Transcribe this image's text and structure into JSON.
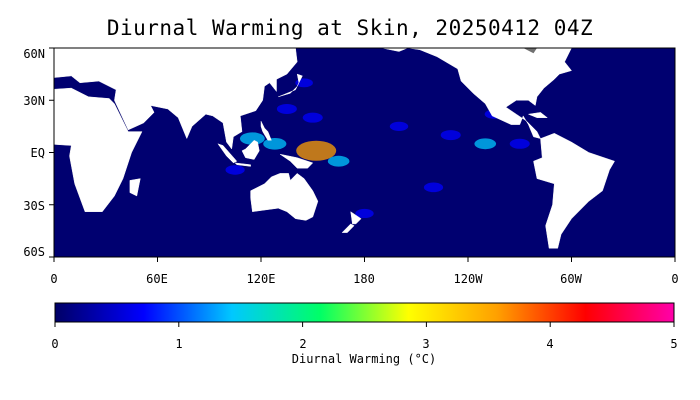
{
  "title": "Diurnal Warming at Skin, 20250412 04Z",
  "map": {
    "lat_ticks": [
      "60N",
      "30N",
      "EQ",
      "30S",
      "60S"
    ],
    "lon_ticks": [
      "0",
      "60E",
      "120E",
      "180",
      "120W",
      "60W",
      "0"
    ],
    "lat_range": [
      -60,
      60
    ],
    "lon_range": [
      0,
      360
    ],
    "ocean_color": "#000070",
    "land_color": "#ffffff",
    "ice_color": "#707070"
  },
  "colorbar": {
    "title": "Diurnal Warming (°C)",
    "ticks": [
      "0",
      "1",
      "2",
      "3",
      "4",
      "5"
    ],
    "range": [
      0,
      5
    ],
    "colors": [
      "#000066",
      "#0000ff",
      "#00c8ff",
      "#00ff66",
      "#ffff00",
      "#ffa000",
      "#ff0000",
      "#ff00aa"
    ]
  },
  "hotspots": [
    {
      "lon": 152,
      "lat": 1,
      "value": 3.5
    },
    {
      "lon": 115,
      "lat": 8,
      "value": 1.6
    },
    {
      "lon": 128,
      "lat": 5,
      "value": 1.4
    },
    {
      "lon": 165,
      "lat": -5,
      "value": 1.2
    },
    {
      "lon": 150,
      "lat": 20,
      "value": 1.0
    },
    {
      "lon": 135,
      "lat": 25,
      "value": 1.0
    },
    {
      "lon": 230,
      "lat": 10,
      "value": 1.0
    },
    {
      "lon": 250,
      "lat": 5,
      "value": 1.2
    },
    {
      "lon": 255,
      "lat": 22,
      "value": 0.8
    },
    {
      "lon": 200,
      "lat": 15,
      "value": 0.8
    },
    {
      "lon": 140,
      "lat": -20,
      "value": 1.0
    },
    {
      "lon": 220,
      "lat": -20,
      "value": 0.9
    },
    {
      "lon": 105,
      "lat": -10,
      "value": 0.9
    },
    {
      "lon": 180,
      "lat": -35,
      "value": 0.8
    },
    {
      "lon": 145,
      "lat": 40,
      "value": 0.7
    },
    {
      "lon": 270,
      "lat": 5,
      "value": 1.0
    }
  ]
}
